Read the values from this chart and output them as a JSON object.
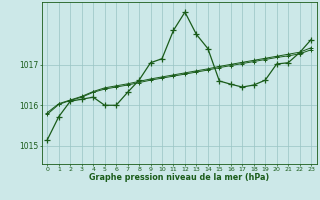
{
  "xlabel": "Graphe pression niveau de la mer (hPa)",
  "bg_color": "#cce8e8",
  "line_color": "#1a5c1a",
  "grid_color": "#99c4c4",
  "xlim_min": -0.5,
  "xlim_max": 23.5,
  "ylim_min": 1014.55,
  "ylim_max": 1018.55,
  "yticks": [
    1015,
    1016,
    1017
  ],
  "xtick_labels": [
    "0",
    "1",
    "2",
    "3",
    "4",
    "5",
    "6",
    "7",
    "8",
    "9",
    "10",
    "11",
    "12",
    "13",
    "14",
    "15",
    "16",
    "17",
    "18",
    "19",
    "20",
    "21",
    "22",
    "23"
  ],
  "line1_x": [
    0,
    1,
    2,
    3,
    4,
    5,
    6,
    7,
    8,
    9,
    10,
    11,
    12,
    13,
    14,
    15,
    16,
    17,
    18,
    19,
    20,
    21,
    22,
    23
  ],
  "line1_y": [
    1015.15,
    1015.72,
    1016.1,
    1016.15,
    1016.2,
    1016.0,
    1016.0,
    1016.32,
    1016.62,
    1017.05,
    1017.15,
    1017.85,
    1018.3,
    1017.75,
    1017.4,
    1016.6,
    1016.52,
    1016.45,
    1016.5,
    1016.62,
    1017.02,
    1017.05,
    1017.3,
    1017.62
  ],
  "line2_x": [
    0,
    1,
    2,
    3,
    4,
    5,
    6,
    7,
    8,
    9,
    10,
    11,
    12,
    13,
    14,
    15,
    16,
    17,
    18,
    19,
    20,
    21,
    22,
    23
  ],
  "line2_y": [
    1015.78,
    1016.02,
    1016.12,
    1016.2,
    1016.32,
    1016.4,
    1016.45,
    1016.5,
    1016.56,
    1016.62,
    1016.67,
    1016.72,
    1016.77,
    1016.82,
    1016.87,
    1016.93,
    1016.98,
    1017.03,
    1017.08,
    1017.13,
    1017.18,
    1017.22,
    1017.27,
    1017.37
  ],
  "line3_x": [
    0,
    1,
    2,
    3,
    4,
    5,
    6,
    7,
    8,
    9,
    10,
    11,
    12,
    13,
    14,
    15,
    16,
    17,
    18,
    19,
    20,
    21,
    22,
    23
  ],
  "line3_y": [
    1015.82,
    1016.04,
    1016.13,
    1016.22,
    1016.34,
    1016.43,
    1016.48,
    1016.53,
    1016.59,
    1016.65,
    1016.7,
    1016.75,
    1016.8,
    1016.85,
    1016.9,
    1016.96,
    1017.01,
    1017.06,
    1017.11,
    1017.16,
    1017.21,
    1017.26,
    1017.31,
    1017.42
  ]
}
